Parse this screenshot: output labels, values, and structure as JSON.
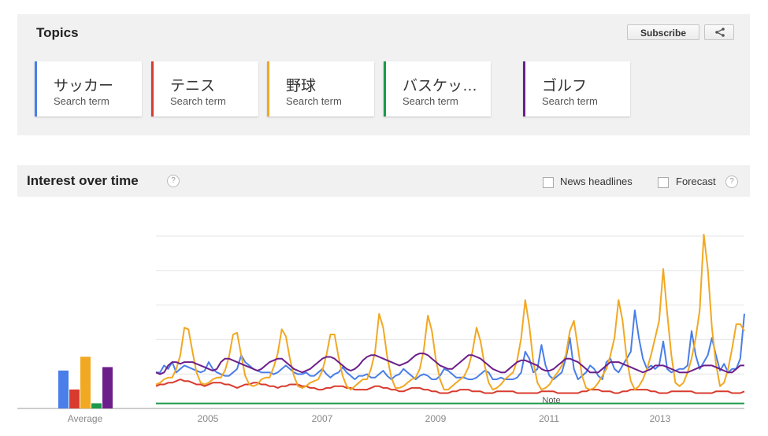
{
  "topics": {
    "title": "Topics",
    "subscribe_label": "Subscribe",
    "share_icon": "share-icon",
    "terms": [
      {
        "name": "サッカー",
        "type": "Search term",
        "color": "#4a7ee8"
      },
      {
        "name": "テニス",
        "type": "Search term",
        "color": "#d83b2e"
      },
      {
        "name": "野球",
        "type": "Search term",
        "color": "#f1a823"
      },
      {
        "name": "バスケッ…",
        "type": "Search term",
        "color": "#1b9a4a"
      },
      {
        "name": "ゴルフ",
        "type": "Search term",
        "color": "#6c1f8a"
      }
    ]
  },
  "interest": {
    "title": "Interest over time",
    "help_icon": "help-icon",
    "news_label": "News headlines",
    "forecast_label": "Forecast",
    "note_label": "Note",
    "average_label": "Average"
  },
  "chart_data": {
    "type": "line",
    "x_ticks": [
      "2005",
      "2007",
      "2009",
      "2011",
      "2013"
    ],
    "ylim": [
      0,
      100
    ],
    "grid": true,
    "averages": [
      {
        "term": "サッカー",
        "value": 22
      },
      {
        "term": "テニス",
        "value": 11
      },
      {
        "term": "野球",
        "value": 30
      },
      {
        "term": "バスケッ…",
        "value": 3
      },
      {
        "term": "ゴルフ",
        "value": 24
      }
    ],
    "series": [
      {
        "name": "サッカー",
        "color": "#4a7ee8",
        "values": [
          20,
          20,
          24,
          22,
          26,
          20,
          22,
          24,
          23,
          22,
          21,
          20,
          21,
          26,
          22,
          20,
          19,
          18,
          18,
          20,
          22,
          30,
          26,
          24,
          22,
          21,
          20,
          20,
          20,
          19,
          20,
          22,
          24,
          22,
          20,
          19,
          19,
          20,
          18,
          18,
          20,
          22,
          19,
          17,
          19,
          20,
          23,
          20,
          18,
          16,
          18,
          18,
          19,
          17,
          17,
          19,
          21,
          18,
          16,
          18,
          19,
          22,
          20,
          18,
          16,
          18,
          19,
          18,
          16,
          16,
          18,
          22,
          21,
          19,
          17,
          17,
          17,
          16,
          16,
          17,
          19,
          21,
          20,
          16,
          16,
          17,
          16,
          16,
          16,
          17,
          20,
          32,
          28,
          20,
          22,
          36,
          24,
          18,
          16,
          18,
          20,
          28,
          40,
          22,
          16,
          18,
          20,
          24,
          22,
          18,
          16,
          26,
          28,
          22,
          20,
          24,
          28,
          32,
          56,
          40,
          28,
          22,
          24,
          22,
          24,
          38,
          22,
          20,
          21,
          22,
          22,
          24,
          44,
          30,
          22,
          26,
          30,
          40,
          30,
          21,
          25,
          20,
          22,
          22,
          28,
          54
        ]
      },
      {
        "name": "テニス",
        "color": "#d83b2e",
        "values": [
          12,
          13,
          13,
          14,
          14,
          15,
          16,
          15,
          15,
          14,
          13,
          13,
          12,
          13,
          14,
          14,
          14,
          13,
          13,
          12,
          11,
          12,
          13,
          13,
          14,
          14,
          13,
          13,
          12,
          12,
          11,
          12,
          12,
          13,
          13,
          13,
          12,
          12,
          11,
          11,
          10,
          10,
          11,
          11,
          12,
          12,
          12,
          11,
          11,
          10,
          10,
          10,
          10,
          11,
          12,
          12,
          11,
          11,
          10,
          10,
          9,
          9,
          10,
          11,
          11,
          11,
          10,
          10,
          9,
          9,
          8,
          8,
          8,
          9,
          9,
          10,
          10,
          10,
          9,
          9,
          9,
          8,
          8,
          8,
          9,
          9,
          9,
          9,
          9,
          8,
          8,
          8,
          8,
          8,
          8,
          9,
          9,
          9,
          9,
          8,
          8,
          8,
          8,
          8,
          8,
          9,
          9,
          10,
          10,
          10,
          9,
          9,
          9,
          8,
          8,
          9,
          9,
          10,
          10,
          10,
          10,
          10,
          9,
          9,
          8,
          8,
          8,
          9,
          9,
          9,
          9,
          9,
          9,
          8,
          8,
          8,
          8,
          8,
          9,
          9,
          9,
          9,
          8,
          8,
          8,
          9
        ]
      },
      {
        "name": "野球",
        "color": "#f1a823",
        "values": [
          13,
          14,
          16,
          17,
          17,
          22,
          30,
          46,
          45,
          32,
          20,
          14,
          13,
          14,
          16,
          17,
          17,
          21,
          29,
          42,
          43,
          30,
          18,
          13,
          12,
          13,
          16,
          17,
          17,
          23,
          31,
          45,
          41,
          28,
          18,
          12,
          11,
          12,
          14,
          15,
          16,
          21,
          30,
          42,
          42,
          29,
          18,
          12,
          10,
          12,
          14,
          16,
          16,
          22,
          32,
          54,
          46,
          29,
          17,
          11,
          11,
          12,
          14,
          16,
          17,
          22,
          33,
          53,
          44,
          27,
          16,
          10,
          10,
          12,
          14,
          16,
          18,
          23,
          32,
          46,
          38,
          24,
          14,
          10,
          11,
          13,
          16,
          18,
          20,
          27,
          40,
          62,
          47,
          26,
          14,
          10,
          11,
          13,
          17,
          20,
          24,
          30,
          44,
          50,
          34,
          18,
          11,
          10,
          11,
          14,
          18,
          22,
          30,
          40,
          62,
          50,
          28,
          15,
          10,
          12,
          16,
          22,
          30,
          40,
          50,
          80,
          54,
          30,
          14,
          12,
          14,
          20,
          28,
          40,
          56,
          100,
          80,
          46,
          25,
          12,
          14,
          22,
          34,
          48,
          48,
          44
        ]
      },
      {
        "name": "バスケッ…",
        "color": "#1b9a4a",
        "values": [
          2,
          2,
          2,
          2,
          2,
          2,
          2,
          2,
          2,
          2,
          2,
          2,
          2,
          2,
          2,
          2,
          2,
          2,
          2,
          2,
          2,
          2,
          2,
          2,
          2,
          2,
          2,
          2,
          2,
          2,
          2,
          2,
          2,
          2,
          2,
          2,
          2,
          2,
          2,
          2,
          2,
          2,
          2,
          2,
          2,
          2,
          2,
          2,
          2,
          2,
          2,
          2,
          2,
          2,
          2,
          2,
          2,
          2,
          2,
          2,
          2,
          2,
          2,
          2,
          2,
          2,
          2,
          2,
          2,
          2,
          2,
          2,
          2,
          2,
          2,
          2,
          2,
          2,
          2,
          2,
          2,
          2,
          2,
          2,
          2,
          2,
          2,
          2,
          2,
          2,
          2,
          2,
          2,
          2,
          2,
          2,
          2,
          2,
          2,
          2,
          2,
          2,
          2,
          2,
          2,
          2,
          2,
          2,
          2,
          2,
          2,
          2,
          2,
          2,
          2,
          2,
          2,
          2,
          2,
          2,
          2,
          2,
          2,
          2,
          2,
          2,
          2,
          2,
          2,
          2,
          2,
          2,
          2,
          2,
          2,
          2,
          2,
          2,
          2,
          2,
          2,
          2,
          2,
          2,
          2,
          2
        ]
      },
      {
        "name": "ゴルフ",
        "color": "#6c1f8a",
        "values": [
          20,
          19,
          20,
          24,
          26,
          26,
          25,
          26,
          26,
          26,
          25,
          24,
          23,
          22,
          21,
          22,
          26,
          28,
          28,
          27,
          26,
          25,
          24,
          23,
          22,
          21,
          22,
          24,
          26,
          27,
          28,
          28,
          26,
          24,
          22,
          21,
          20,
          21,
          22,
          24,
          26,
          28,
          29,
          29,
          28,
          26,
          24,
          22,
          21,
          22,
          24,
          27,
          29,
          30,
          30,
          29,
          28,
          27,
          26,
          25,
          24,
          25,
          26,
          28,
          30,
          31,
          31,
          30,
          28,
          26,
          24,
          23,
          22,
          22,
          24,
          26,
          28,
          30,
          30,
          29,
          28,
          26,
          24,
          22,
          21,
          20,
          20,
          22,
          24,
          26,
          27,
          27,
          26,
          25,
          24,
          22,
          21,
          21,
          22,
          24,
          26,
          28,
          28,
          27,
          26,
          24,
          22,
          20,
          20,
          20,
          22,
          24,
          26,
          26,
          26,
          25,
          24,
          23,
          22,
          21,
          20,
          21,
          22,
          24,
          24,
          24,
          23,
          22,
          21,
          20,
          20,
          20,
          21,
          22,
          23,
          24,
          24,
          24,
          23,
          22,
          21,
          20,
          20,
          22,
          24,
          24
        ]
      }
    ]
  }
}
